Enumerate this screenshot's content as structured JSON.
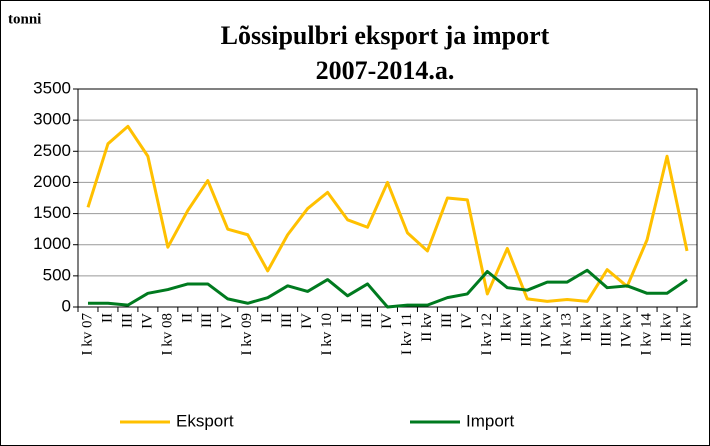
{
  "chart_data": {
    "type": "line",
    "title": "Lõssipulbri eksport ja import",
    "subtitle": "2007-2014.a.",
    "y_label": "tonni",
    "categories": [
      "I kv 07",
      "II",
      "III",
      "IV",
      "I kv 08",
      "II",
      "III",
      "IV",
      "I kv 09",
      "II",
      "III",
      "IV",
      "I kv 10",
      "II",
      "III",
      "IV",
      "I kv 11",
      "II kv",
      "III",
      "IV",
      "I kv 12",
      "II kv",
      "III kv",
      "IV kv",
      "I kv 13",
      "II kv",
      "III kv",
      "IV kv",
      "I kv 14",
      "II kv",
      "III kv"
    ],
    "series": [
      {
        "name": "Eksport",
        "color": "#ffc000",
        "values": [
          1600,
          2620,
          2900,
          2420,
          960,
          1550,
          2030,
          1250,
          1160,
          580,
          1160,
          1580,
          1840,
          1400,
          1280,
          2000,
          1190,
          900,
          1750,
          1720,
          210,
          940,
          130,
          90,
          120,
          90,
          600,
          330,
          1080,
          2420,
          900
        ]
      },
      {
        "name": "Import",
        "color": "#007a1f",
        "values": [
          60,
          60,
          30,
          220,
          280,
          370,
          370,
          130,
          60,
          150,
          340,
          250,
          440,
          180,
          370,
          0,
          30,
          30,
          150,
          210,
          570,
          310,
          270,
          400,
          400,
          590,
          310,
          340,
          220,
          220,
          440
        ]
      }
    ],
    "ylim": [
      0,
      3500
    ],
    "yticks": [
      0,
      500,
      1000,
      1500,
      2000,
      2500,
      3000,
      3500
    ],
    "grid": true,
    "legend": "bottom"
  }
}
